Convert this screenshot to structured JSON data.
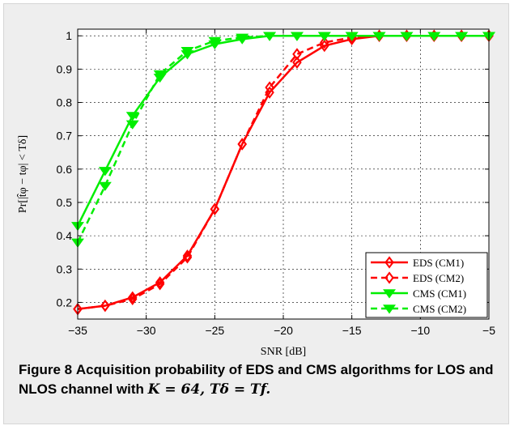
{
  "caption": {
    "lead": "Figure 8",
    "text": "Acquisition probability of EDS and CMS algorithms for LOS and NLOS channel with",
    "math": "K = 64, Tδ = Tf."
  },
  "chart_data": {
    "type": "line",
    "xlabel": "SNR [dB]",
    "ylabel": "Pr[|t̂φ − tφ| < Tδ]",
    "xlim": [
      -35,
      -5
    ],
    "ylim": [
      0.15,
      1.02
    ],
    "x_ticks": [
      -35,
      -30,
      -25,
      -20,
      -15,
      -10,
      -5
    ],
    "y_ticks": [
      0.2,
      0.3,
      0.4,
      0.5,
      0.6,
      0.7,
      0.8,
      0.9,
      1
    ],
    "grid": true,
    "legend_position": "bottom-right",
    "series": [
      {
        "name": "EDS (CM1)",
        "color": "#ff0000",
        "dash": false,
        "marker": "diamond",
        "x": [
          -35,
          -33,
          -31,
          -29,
          -27,
          -25,
          -23,
          -21,
          -19,
          -17,
          -15,
          -13,
          -11,
          -9,
          -7,
          -5
        ],
        "y": [
          0.18,
          0.19,
          0.215,
          0.26,
          0.34,
          0.48,
          0.675,
          0.83,
          0.92,
          0.97,
          0.99,
          1.0,
          1.0,
          1.0,
          1.0,
          1.0
        ]
      },
      {
        "name": "EDS (CM2)",
        "color": "#ff0000",
        "dash": true,
        "marker": "diamond-open",
        "x": [
          -35,
          -33,
          -31,
          -29,
          -27,
          -25,
          -23,
          -21,
          -19,
          -17,
          -15,
          -13,
          -11,
          -9,
          -7,
          -5
        ],
        "y": [
          0.18,
          0.19,
          0.21,
          0.255,
          0.335,
          0.48,
          0.675,
          0.845,
          0.945,
          0.98,
          0.995,
          1.0,
          1.0,
          1.0,
          1.0,
          1.0
        ]
      },
      {
        "name": "CMS (CM1)",
        "color": "#00ee00",
        "dash": false,
        "marker": "triangle-down",
        "x": [
          -35,
          -33,
          -31,
          -29,
          -27,
          -25,
          -23,
          -21,
          -19,
          -17,
          -15,
          -13,
          -11,
          -9,
          -7,
          -5
        ],
        "y": [
          0.43,
          0.595,
          0.76,
          0.875,
          0.945,
          0.975,
          0.99,
          1.0,
          1.0,
          1.0,
          1.0,
          1.0,
          1.0,
          1.0,
          1.0,
          1.0
        ]
      },
      {
        "name": "CMS (CM2)",
        "color": "#00ee00",
        "dash": true,
        "marker": "triangle-down",
        "x": [
          -35,
          -33,
          -31,
          -29,
          -27,
          -25,
          -23,
          -21,
          -19,
          -17,
          -15,
          -13,
          -11,
          -9,
          -7,
          -5
        ],
        "y": [
          0.38,
          0.55,
          0.735,
          0.885,
          0.955,
          0.985,
          0.995,
          1.0,
          1.0,
          1.0,
          1.0,
          1.0,
          1.0,
          1.0,
          1.0,
          1.0
        ]
      }
    ]
  }
}
